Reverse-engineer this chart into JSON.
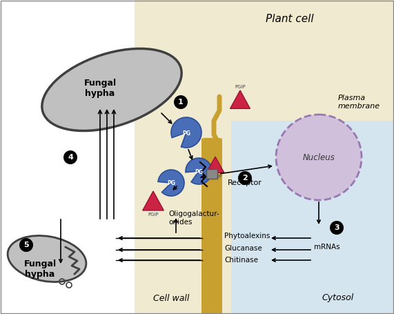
{
  "bg_white": "#ffffff",
  "plant_cell_bg": "#f0ead0",
  "cytosol_bg": "#d5e5f0",
  "cell_wall_fill": "#c8a030",
  "fungal_fill": "#c0c0c0",
  "fungal_edge": "#404040",
  "nucleus_fill": "#d0c0dc",
  "nucleus_edge": "#9878b0",
  "pg_fill": "#4a6db8",
  "pg_edge": "#2a4d98",
  "pgip_fill": "#cc2244",
  "pgip_edge": "#991133",
  "receptor_fill": "#888888",
  "arrow_color": "#000000",
  "title": "Plant cell",
  "plasma_membrane_label": "Plasma\nmembrane",
  "nucleus_label": "Nucleus",
  "receptor_label": "Receptor",
  "cell_wall_label": "Cell wall",
  "cytosol_label": "Cytosol",
  "fungal_top_label": "Fungal\nhypha",
  "fungal_bot_label": "Fungal\nhypha",
  "oligo_label": "Oligogalactur-\nonides",
  "phytoalexins_label": "Phytoalexins",
  "glucanase_label": "Glucanase",
  "chitinase_label": "Chitinase",
  "mrnas_label": "mRNAs",
  "pgip_label": "PGIP"
}
